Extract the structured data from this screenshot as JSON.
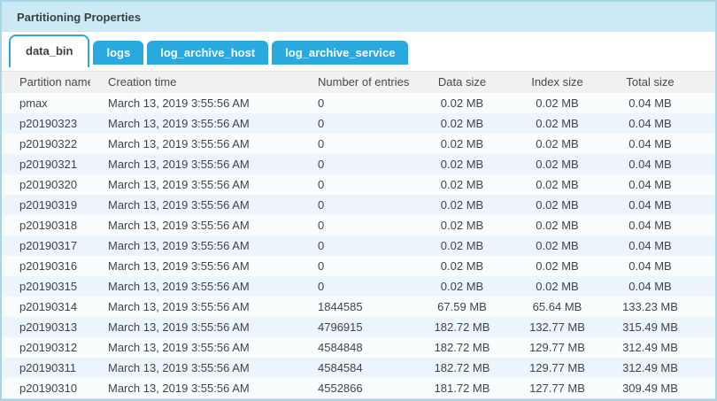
{
  "panel": {
    "title": "Partitioning Properties"
  },
  "tabs": [
    {
      "label": "data_bin",
      "active": true
    },
    {
      "label": "logs",
      "active": false
    },
    {
      "label": "log_archive_host",
      "active": false
    },
    {
      "label": "log_archive_service",
      "active": false
    }
  ],
  "table": {
    "columns": [
      "Partition name",
      "Creation time",
      "Number of entries",
      "Data size",
      "Index size",
      "Total size"
    ],
    "rows": [
      [
        "pmax",
        "March 13, 2019 3:55:56 AM",
        "0",
        "0.02 MB",
        "0.02 MB",
        "0.04 MB"
      ],
      [
        "p20190323",
        "March 13, 2019 3:55:56 AM",
        "0",
        "0.02 MB",
        "0.02 MB",
        "0.04 MB"
      ],
      [
        "p20190322",
        "March 13, 2019 3:55:56 AM",
        "0",
        "0.02 MB",
        "0.02 MB",
        "0.04 MB"
      ],
      [
        "p20190321",
        "March 13, 2019 3:55:56 AM",
        "0",
        "0.02 MB",
        "0.02 MB",
        "0.04 MB"
      ],
      [
        "p20190320",
        "March 13, 2019 3:55:56 AM",
        "0",
        "0.02 MB",
        "0.02 MB",
        "0.04 MB"
      ],
      [
        "p20190319",
        "March 13, 2019 3:55:56 AM",
        "0",
        "0.02 MB",
        "0.02 MB",
        "0.04 MB"
      ],
      [
        "p20190318",
        "March 13, 2019 3:55:56 AM",
        "0",
        "0.02 MB",
        "0.02 MB",
        "0.04 MB"
      ],
      [
        "p20190317",
        "March 13, 2019 3:55:56 AM",
        "0",
        "0.02 MB",
        "0.02 MB",
        "0.04 MB"
      ],
      [
        "p20190316",
        "March 13, 2019 3:55:56 AM",
        "0",
        "0.02 MB",
        "0.02 MB",
        "0.04 MB"
      ],
      [
        "p20190315",
        "March 13, 2019 3:55:56 AM",
        "0",
        "0.02 MB",
        "0.02 MB",
        "0.04 MB"
      ],
      [
        "p20190314",
        "March 13, 2019 3:55:56 AM",
        "1844585",
        "67.59 MB",
        "65.64 MB",
        "133.23 MB"
      ],
      [
        "p20190313",
        "March 13, 2019 3:55:56 AM",
        "4796915",
        "182.72 MB",
        "132.77 MB",
        "315.49 MB"
      ],
      [
        "p20190312",
        "March 13, 2019 3:55:56 AM",
        "4584848",
        "182.72 MB",
        "129.77 MB",
        "312.49 MB"
      ],
      [
        "p20190311",
        "March 13, 2019 3:55:56 AM",
        "4584584",
        "182.72 MB",
        "129.77 MB",
        "312.49 MB"
      ],
      [
        "p20190310",
        "March 13, 2019 3:55:56 AM",
        "4552866",
        "181.72 MB",
        "127.77 MB",
        "309.49 MB"
      ]
    ]
  },
  "colors": {
    "accent_blue": "#2aa9df",
    "title_bar_bg": "#cce9f6",
    "panel_border": "#a9d5e9",
    "header_row_bg": "#f1f1f1",
    "row_stripe_light": "#f9fdfe",
    "row_stripe_blue": "#ebf5fb",
    "partial_row_bg": "#c5e3f2",
    "text_dark": "#3b4045"
  }
}
